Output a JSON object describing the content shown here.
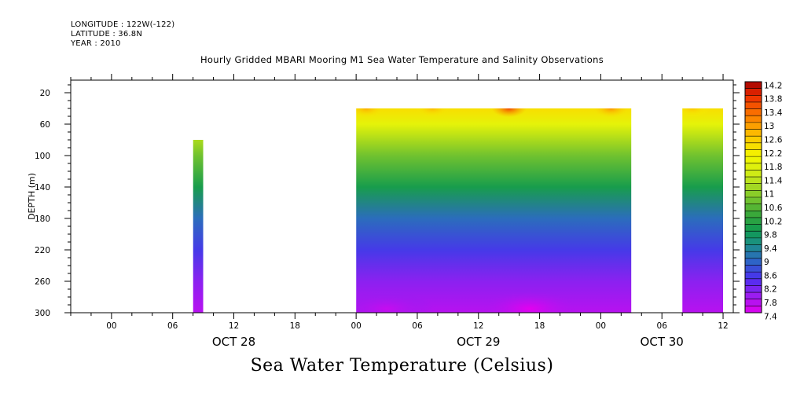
{
  "header": {
    "longitude": "LONGITUDE : 122W(-122)",
    "latitude": "LATITUDE : 36.8N",
    "year": "YEAR : 2010"
  },
  "chart_data": {
    "type": "heatmap",
    "title": "Hourly Gridded MBARI Mooring M1 Sea Water Temperature and Salinity Observations",
    "variable_title": "Sea Water Temperature (Celsius)",
    "ylabel": "DEPTH (m)",
    "ylim": [
      300,
      4
    ],
    "y_inverted": true,
    "yticks": [
      20,
      60,
      100,
      140,
      180,
      220,
      260,
      300
    ],
    "x_range_hours": [
      -4,
      61
    ],
    "x_origin": "OCT 28 00:00",
    "xtick_hours": [
      0,
      6,
      12,
      18,
      24,
      30,
      36,
      42,
      48,
      54,
      60
    ],
    "xtick_labels": [
      "00",
      "06",
      "12",
      "18",
      "00",
      "06",
      "12",
      "18",
      "00",
      "06",
      "12"
    ],
    "date_labels": [
      {
        "label": "OCT 28",
        "hour": 12
      },
      {
        "label": "OCT 29",
        "hour": 36
      },
      {
        "label": "OCT 30",
        "hour": 54
      }
    ],
    "colorbar": {
      "min": 7.4,
      "max": 14.2,
      "step": 0.2,
      "labels": [
        "14.2",
        "13.8",
        "13.4",
        "13",
        "12.6",
        "12.2",
        "11.8",
        "11.4",
        "11",
        "10.6",
        "10.2",
        "9.8",
        "9.4",
        "9",
        "8.6",
        "8.2",
        "7.8",
        "7.4"
      ],
      "stops": [
        {
          "value": 7.4,
          "color": "#e400f0"
        },
        {
          "value": 7.9,
          "color": "#9b1df0"
        },
        {
          "value": 8.4,
          "color": "#4b30f0"
        },
        {
          "value": 8.9,
          "color": "#2e64c8"
        },
        {
          "value": 9.4,
          "color": "#1d8f8a"
        },
        {
          "value": 9.8,
          "color": "#0f9a50"
        },
        {
          "value": 10.3,
          "color": "#3aa83a"
        },
        {
          "value": 10.8,
          "color": "#7ec82c"
        },
        {
          "value": 11.4,
          "color": "#c8e81a"
        },
        {
          "value": 12.0,
          "color": "#f4f800"
        },
        {
          "value": 12.6,
          "color": "#fcc400"
        },
        {
          "value": 13.2,
          "color": "#fc7a00"
        },
        {
          "value": 13.8,
          "color": "#ec2a00"
        },
        {
          "value": 14.2,
          "color": "#a00000"
        }
      ]
    },
    "depth_profile": {
      "depths": [
        40,
        60,
        100,
        140,
        180,
        220,
        260,
        300
      ],
      "temperatures": [
        12.3,
        11.8,
        10.7,
        9.9,
        9.0,
        8.5,
        8.0,
        7.7
      ]
    },
    "data_segments": [
      {
        "start_hour": 8,
        "end_hour": 9,
        "top_depth": 80
      },
      {
        "start_hour": 24,
        "end_hour": 51,
        "top_depth": 40
      },
      {
        "start_hour": 56,
        "end_hour": 60,
        "top_depth": 40
      }
    ],
    "surface_warm_spots": [
      {
        "hour": 25,
        "temperature": 12.8
      },
      {
        "hour": 31.5,
        "temperature": 12.7
      },
      {
        "hour": 39,
        "temperature": 13.6
      },
      {
        "hour": 49,
        "temperature": 13.0
      },
      {
        "hour": 57,
        "temperature": 12.6
      }
    ],
    "cold_spots": [
      {
        "hour": 27,
        "depth": 295,
        "temperature": 7.6
      },
      {
        "hour": 41,
        "depth": 295,
        "temperature": 7.4
      }
    ]
  }
}
